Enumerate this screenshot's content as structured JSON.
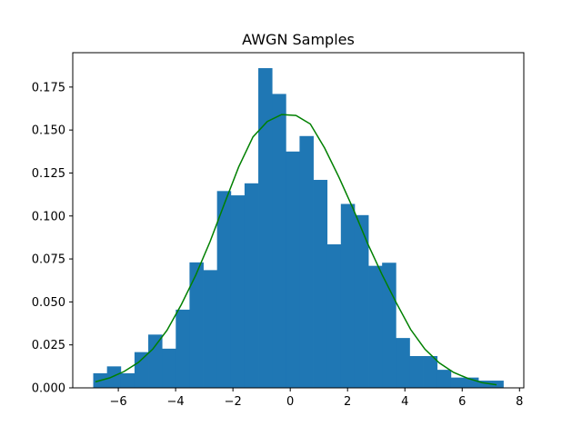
{
  "chart_data": {
    "type": "bar",
    "title": "AWGN Samples",
    "xlabel": "",
    "ylabel": "",
    "xlim": [
      -7.59,
      8.15
    ],
    "ylim": [
      0,
      0.195
    ],
    "xticks": [
      -6,
      -4,
      -2,
      0,
      2,
      4,
      6,
      8
    ],
    "xtick_labels": [
      "−6",
      "−4",
      "−2",
      "0",
      "2",
      "4",
      "6",
      "8"
    ],
    "yticks": [
      0.0,
      0.025,
      0.05,
      0.075,
      0.1,
      0.125,
      0.15,
      0.175
    ],
    "ytick_labels": [
      "0.000",
      "0.025",
      "0.050",
      "0.075",
      "0.100",
      "0.125",
      "0.150",
      "0.175"
    ],
    "grid": false,
    "histogram": {
      "bin_edges": [
        -6.875,
        -6.395,
        -5.915,
        -5.435,
        -4.955,
        -4.475,
        -3.995,
        -3.515,
        -3.035,
        -2.555,
        -2.075,
        -1.595,
        -1.115,
        -0.635,
        -0.155,
        0.325,
        0.805,
        1.285,
        1.765,
        2.245,
        2.725,
        3.205,
        3.685,
        4.165,
        4.645,
        5.125,
        5.605,
        6.085,
        6.565,
        7.045,
        7.435
      ],
      "values": [
        0.0085,
        0.0125,
        0.0085,
        0.0208,
        0.031,
        0.0228,
        0.0455,
        0.073,
        0.0685,
        0.1145,
        0.112,
        0.119,
        0.186,
        0.171,
        0.1375,
        0.1465,
        0.121,
        0.0835,
        0.107,
        0.1005,
        0.071,
        0.0728,
        0.029,
        0.0185,
        0.0185,
        0.0105,
        0.006,
        0.006,
        0.0042,
        0.0042
      ],
      "color": "#1f77b4"
    },
    "series": [
      {
        "type": "line",
        "color": "#008000",
        "x": [
          -6.8,
          -6.3,
          -5.8,
          -5.3,
          -4.8,
          -4.3,
          -3.8,
          -3.3,
          -2.8,
          -2.3,
          -1.8,
          -1.3,
          -0.8,
          -0.3,
          0.2,
          0.7,
          1.2,
          1.7,
          2.2,
          2.7,
          3.2,
          3.7,
          4.2,
          4.7,
          5.2,
          5.7,
          6.2,
          6.7,
          7.2
        ],
        "y": [
          0.0035,
          0.0058,
          0.0095,
          0.0148,
          0.0225,
          0.0335,
          0.0485,
          0.0655,
          0.085,
          0.107,
          0.1285,
          0.146,
          0.155,
          0.159,
          0.1585,
          0.1535,
          0.1395,
          0.1225,
          0.104,
          0.084,
          0.066,
          0.0495,
          0.034,
          0.0225,
          0.0145,
          0.009,
          0.0055,
          0.003,
          0.0018
        ]
      }
    ]
  }
}
